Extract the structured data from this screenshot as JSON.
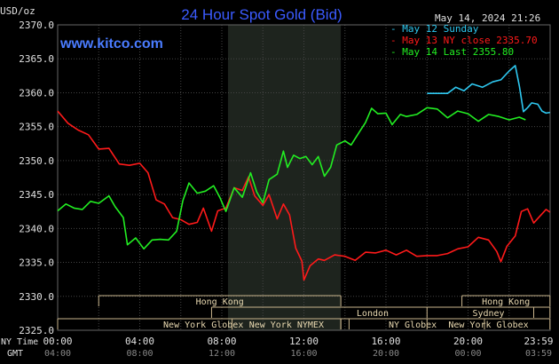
{
  "header": {
    "title": "24 Hour Spot Gold (Bid)",
    "units": "USD/oz",
    "timestamp": "May 14, 2024 21:26",
    "website": "www.kitco.com"
  },
  "colors": {
    "background": "#000000",
    "title": "#3b5bff",
    "website": "#4a7cff",
    "grid": "#444444",
    "highlight": "#1e241e",
    "axis_text": "#e0e0e0",
    "session_bar": "#c8b48c",
    "session_text": "#e8d8b0",
    "series_may12": "#2ec8f0",
    "series_may13": "#ff1a1a",
    "series_may14": "#22ee22"
  },
  "time_axis": {
    "ny_time_label": "NY Time",
    "gmt_label": "GMT",
    "ny_ticks": [
      "00:00",
      "04:00",
      "08:00",
      "12:00",
      "16:00",
      "20:00",
      "23:59"
    ],
    "gmt_ticks": [
      "04:00",
      "08:00",
      "12:00",
      "16:00",
      "20:00",
      "00:00",
      "03:59"
    ]
  },
  "sessions": [
    {
      "label": "Hong Kong",
      "start": 2,
      "end": 13.8
    },
    {
      "label": "London",
      "start": 7.5,
      "end": 23.2
    },
    {
      "label": "New York Globex",
      "start": 0,
      "end": 14.2
    },
    {
      "label": "New York NYMEX",
      "start": 8.5,
      "end": 13.8
    },
    {
      "label": "NY Globex",
      "start": 13.8,
      "end": 20.8
    },
    {
      "label": "Hong Kong",
      "start": 19.7,
      "end": 23.99
    },
    {
      "label": "Sydney",
      "start": 18,
      "end": 23.99
    },
    {
      "label": "New York Globex",
      "start": 18,
      "end": 23.99
    }
  ],
  "chart_data": {
    "type": "line",
    "title": "24 Hour Spot Gold (Bid)",
    "ylabel": "USD/oz",
    "ylim": [
      2325,
      2370
    ],
    "yticks": [
      "2325.0",
      "2330.0",
      "2335.0",
      "2340.0",
      "2345.0",
      "2350.0",
      "2355.0",
      "2360.0",
      "2365.0",
      "2370.0"
    ],
    "xlim": [
      0,
      24
    ],
    "x_unit": "hours (NY time)",
    "highlight_range": [
      8.3,
      13.8
    ],
    "grid": true,
    "legend_position": "top-right",
    "series": [
      {
        "name": "May 12 Sunday",
        "color": "#2ec8f0",
        "points": [
          [
            18,
            2359.9
          ],
          [
            18.5,
            2359.9
          ],
          [
            19,
            2359.9
          ],
          [
            19.4,
            2360.8
          ],
          [
            19.8,
            2360.3
          ],
          [
            20.2,
            2361.3
          ],
          [
            20.7,
            2360.8
          ],
          [
            21.2,
            2361.6
          ],
          [
            21.6,
            2361.9
          ],
          [
            22.0,
            2363.2
          ],
          [
            22.3,
            2364
          ],
          [
            22.5,
            2361
          ],
          [
            22.7,
            2357.2
          ],
          [
            22.9,
            2357.8
          ],
          [
            23.1,
            2358.5
          ],
          [
            23.4,
            2358.3
          ],
          [
            23.6,
            2357.3
          ],
          [
            23.8,
            2357.0
          ],
          [
            23.99,
            2357.1
          ]
        ]
      },
      {
        "name": "May 13 NY close 2335.70",
        "color": "#ff1a1a",
        "points": [
          [
            0,
            2357.3
          ],
          [
            0.5,
            2355.5
          ],
          [
            1,
            2354.5
          ],
          [
            1.5,
            2353.8
          ],
          [
            2,
            2351.7
          ],
          [
            2.5,
            2351.8
          ],
          [
            3,
            2349.5
          ],
          [
            3.5,
            2349.3
          ],
          [
            4,
            2349.6
          ],
          [
            4.4,
            2348.2
          ],
          [
            4.8,
            2344.2
          ],
          [
            5.2,
            2343.6
          ],
          [
            5.6,
            2341.6
          ],
          [
            6,
            2341.3
          ],
          [
            6.4,
            2340.6
          ],
          [
            6.8,
            2340.9
          ],
          [
            7.1,
            2343.0
          ],
          [
            7.5,
            2339.6
          ],
          [
            7.8,
            2342.6
          ],
          [
            8.2,
            2343.0
          ],
          [
            8.6,
            2346.0
          ],
          [
            9,
            2345.6
          ],
          [
            9.3,
            2347.6
          ],
          [
            9.6,
            2344.8
          ],
          [
            10,
            2343.4
          ],
          [
            10.3,
            2345.0
          ],
          [
            10.7,
            2341.4
          ],
          [
            11,
            2343.6
          ],
          [
            11.3,
            2342.0
          ],
          [
            11.6,
            2337.1
          ],
          [
            11.9,
            2335.2
          ],
          [
            12.0,
            2332.4
          ],
          [
            12.3,
            2334.5
          ],
          [
            12.7,
            2335.5
          ],
          [
            13,
            2335.3
          ],
          [
            13.5,
            2336.1
          ],
          [
            14,
            2335.9
          ],
          [
            14.5,
            2335.3
          ],
          [
            15,
            2336.5
          ],
          [
            15.5,
            2336.4
          ],
          [
            16,
            2336.8
          ],
          [
            16.5,
            2336.1
          ],
          [
            17,
            2336.8
          ],
          [
            17.5,
            2335.9
          ],
          [
            18,
            2336.0
          ],
          [
            18.5,
            2336.0
          ],
          [
            19,
            2336.3
          ],
          [
            19.5,
            2337.0
          ],
          [
            20,
            2337.3
          ],
          [
            20.5,
            2338.7
          ],
          [
            21,
            2338.3
          ],
          [
            21.4,
            2336.6
          ],
          [
            21.6,
            2335.1
          ],
          [
            21.9,
            2337.4
          ],
          [
            22.3,
            2338.9
          ],
          [
            22.6,
            2342.5
          ],
          [
            22.9,
            2342.9
          ],
          [
            23.2,
            2340.8
          ],
          [
            23.5,
            2341.8
          ],
          [
            23.8,
            2342.8
          ],
          [
            23.99,
            2342.4
          ]
        ]
      },
      {
        "name": "May 14 Last 2355.80",
        "color": "#22ee22",
        "points": [
          [
            0,
            2342.6
          ],
          [
            0.4,
            2343.6
          ],
          [
            0.8,
            2343.0
          ],
          [
            1.2,
            2342.8
          ],
          [
            1.6,
            2344.0
          ],
          [
            2,
            2343.7
          ],
          [
            2.5,
            2344.8
          ],
          [
            2.8,
            2343.2
          ],
          [
            3.2,
            2341.6
          ],
          [
            3.4,
            2337.6
          ],
          [
            3.8,
            2338.6
          ],
          [
            4.2,
            2337.0
          ],
          [
            4.6,
            2338.3
          ],
          [
            5,
            2338.4
          ],
          [
            5.4,
            2338.3
          ],
          [
            5.8,
            2339.6
          ],
          [
            6.1,
            2344.1
          ],
          [
            6.4,
            2346.7
          ],
          [
            6.8,
            2345.2
          ],
          [
            7.2,
            2345.5
          ],
          [
            7.6,
            2346.3
          ],
          [
            7.9,
            2344.6
          ],
          [
            8.2,
            2342.5
          ],
          [
            8.6,
            2346.0
          ],
          [
            9,
            2344.6
          ],
          [
            9.4,
            2348.2
          ],
          [
            9.7,
            2345.4
          ],
          [
            10,
            2343.8
          ],
          [
            10.3,
            2347.2
          ],
          [
            10.7,
            2348.0
          ],
          [
            11,
            2351.4
          ],
          [
            11.2,
            2349.0
          ],
          [
            11.5,
            2350.8
          ],
          [
            11.8,
            2350.3
          ],
          [
            12.1,
            2350.6
          ],
          [
            12.4,
            2349.4
          ],
          [
            12.7,
            2350.6
          ],
          [
            13,
            2347.7
          ],
          [
            13.3,
            2349.0
          ],
          [
            13.6,
            2352.3
          ],
          [
            14,
            2352.9
          ],
          [
            14.3,
            2352.3
          ],
          [
            14.7,
            2354.2
          ],
          [
            15,
            2355.6
          ],
          [
            15.3,
            2357.7
          ],
          [
            15.6,
            2356.9
          ],
          [
            16,
            2357.0
          ],
          [
            16.3,
            2355.3
          ],
          [
            16.7,
            2356.8
          ],
          [
            17,
            2356.5
          ],
          [
            17.5,
            2356.8
          ],
          [
            18,
            2357.8
          ],
          [
            18.5,
            2357.6
          ],
          [
            19,
            2356.3
          ],
          [
            19.5,
            2357.3
          ],
          [
            20,
            2356.9
          ],
          [
            20.5,
            2355.8
          ],
          [
            21,
            2356.8
          ],
          [
            21.5,
            2356.5
          ],
          [
            22,
            2356.0
          ],
          [
            22.5,
            2356.4
          ],
          [
            22.8,
            2356.0
          ]
        ]
      }
    ]
  }
}
